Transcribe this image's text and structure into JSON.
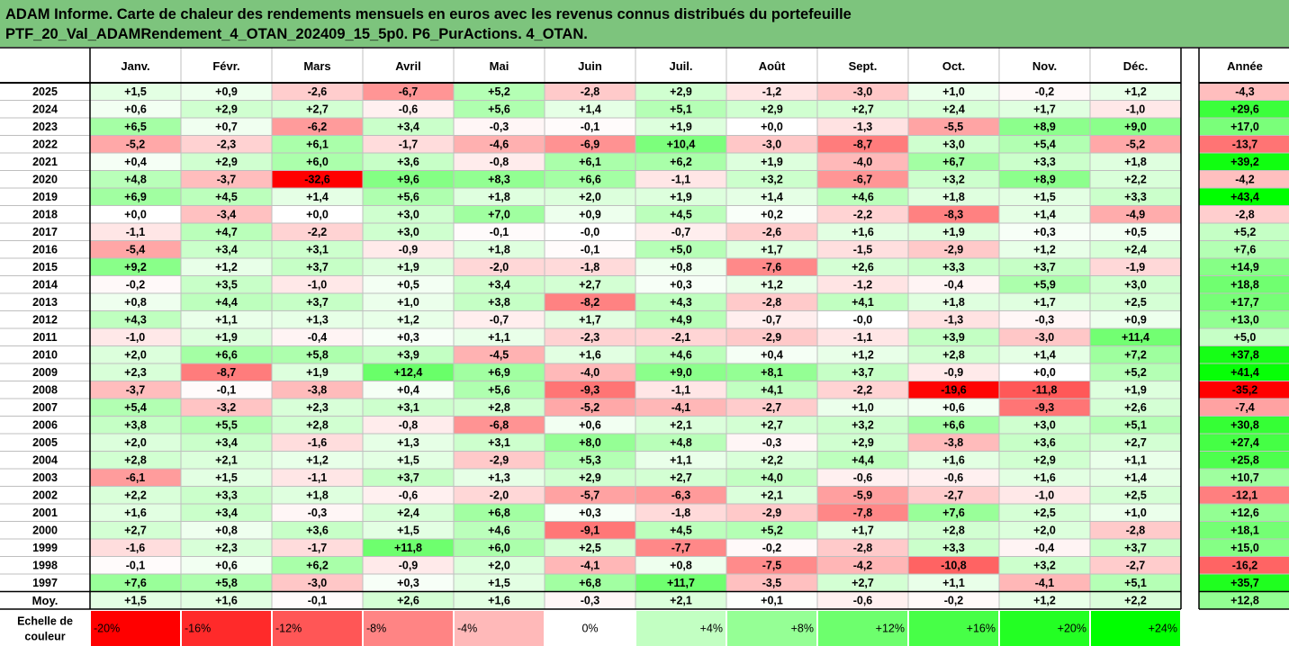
{
  "title": {
    "line1": "ADAM Informe. Carte de chaleur des rendements mensuels en euros avec les revenus connus distribués du portefeuille",
    "line2": "PTF_20_Val_ADAMRendement_4_OTAN_202409_15_5p0. P6_PurActions. 4_OTAN."
  },
  "chart_data": {
    "type": "heatmap",
    "month_headers": [
      "Janv.",
      "Févr.",
      "Mars",
      "Avril",
      "Mai",
      "Juin",
      "Juil.",
      "Août",
      "Sept.",
      "Oct.",
      "Nov.",
      "Déc."
    ],
    "year_header": "Année",
    "rows": [
      {
        "year": "2025",
        "months": [
          1.5,
          0.9,
          -2.6,
          -6.7,
          5.2,
          -2.8,
          2.9,
          -1.2,
          -3.0,
          1.0,
          -0.2,
          1.2
        ],
        "annual": -4.3
      },
      {
        "year": "2024",
        "months": [
          0.6,
          2.9,
          2.7,
          -0.6,
          5.6,
          1.4,
          5.1,
          2.9,
          2.7,
          2.4,
          1.7,
          -1.0
        ],
        "annual": 29.6
      },
      {
        "year": "2023",
        "months": [
          6.5,
          0.7,
          -6.2,
          3.4,
          -0.3,
          -0.1,
          1.9,
          0.0,
          -1.3,
          -5.5,
          8.9,
          9.0
        ],
        "annual": 17.0
      },
      {
        "year": "2022",
        "months": [
          -5.2,
          -2.3,
          6.1,
          -1.7,
          -4.6,
          -6.9,
          10.4,
          -3.0,
          -8.7,
          3.0,
          5.4,
          -5.2
        ],
        "annual": -13.7
      },
      {
        "year": "2021",
        "months": [
          0.4,
          2.9,
          6.0,
          3.6,
          -0.8,
          6.1,
          6.2,
          1.9,
          -4.0,
          6.7,
          3.3,
          1.8
        ],
        "annual": 39.2
      },
      {
        "year": "2020",
        "months": [
          4.8,
          -3.7,
          -32.6,
          9.6,
          8.3,
          6.6,
          -1.1,
          3.2,
          -6.7,
          3.2,
          8.9,
          2.2
        ],
        "annual": -4.2
      },
      {
        "year": "2019",
        "months": [
          6.9,
          4.5,
          1.4,
          5.6,
          1.8,
          2.0,
          1.9,
          1.4,
          4.6,
          1.8,
          1.5,
          3.3
        ],
        "annual": 43.4
      },
      {
        "year": "2018",
        "months": [
          0.0,
          -3.4,
          0.0,
          3.0,
          7.0,
          0.9,
          4.5,
          0.2,
          -2.2,
          -8.3,
          1.4,
          -4.9
        ],
        "annual": -2.8
      },
      {
        "year": "2017",
        "months": [
          -1.1,
          4.7,
          -2.2,
          3.0,
          -0.1,
          -0.0,
          -0.7,
          -2.6,
          1.6,
          1.9,
          0.3,
          0.5
        ],
        "annual": 5.2
      },
      {
        "year": "2016",
        "months": [
          -5.4,
          3.4,
          3.1,
          -0.9,
          1.8,
          -0.1,
          5.0,
          1.7,
          -1.5,
          -2.9,
          1.2,
          2.4
        ],
        "annual": 7.6
      },
      {
        "year": "2015",
        "months": [
          9.2,
          1.2,
          3.7,
          1.9,
          -2.0,
          -1.8,
          0.8,
          -7.6,
          2.6,
          3.3,
          3.7,
          -1.9
        ],
        "annual": 14.9
      },
      {
        "year": "2014",
        "months": [
          -0.2,
          3.5,
          -1.0,
          0.5,
          3.4,
          2.7,
          0.3,
          1.2,
          -1.2,
          -0.4,
          5.9,
          3.0
        ],
        "annual": 18.8
      },
      {
        "year": "2013",
        "months": [
          0.8,
          4.4,
          3.7,
          1.0,
          3.8,
          -8.2,
          4.3,
          -2.8,
          4.1,
          1.8,
          1.7,
          2.5
        ],
        "annual": 17.7
      },
      {
        "year": "2012",
        "months": [
          4.3,
          1.1,
          1.3,
          1.2,
          -0.7,
          1.7,
          4.9,
          -0.7,
          -0.0,
          -1.3,
          -0.3,
          0.9
        ],
        "annual": 13.0
      },
      {
        "year": "2011",
        "months": [
          -1.0,
          1.9,
          -0.4,
          0.3,
          1.1,
          -2.3,
          -2.1,
          -2.9,
          -1.1,
          3.9,
          -3.0,
          11.4
        ],
        "annual": 5.0
      },
      {
        "year": "2010",
        "months": [
          2.0,
          6.6,
          5.8,
          3.9,
          -4.5,
          1.6,
          4.6,
          0.4,
          1.2,
          2.8,
          1.4,
          7.2
        ],
        "annual": 37.8
      },
      {
        "year": "2009",
        "months": [
          2.3,
          -8.7,
          1.9,
          12.4,
          6.9,
          -4.0,
          9.0,
          8.1,
          3.7,
          -0.9,
          0.0,
          5.2
        ],
        "annual": 41.4
      },
      {
        "year": "2008",
        "months": [
          -3.7,
          -0.1,
          -3.8,
          0.4,
          5.6,
          -9.3,
          -1.1,
          4.1,
          -2.2,
          -19.6,
          -11.8,
          1.9
        ],
        "annual": -35.2
      },
      {
        "year": "2007",
        "months": [
          5.4,
          -3.2,
          2.3,
          3.1,
          2.8,
          -5.2,
          -4.1,
          -2.7,
          1.0,
          0.6,
          -9.3,
          2.6
        ],
        "annual": -7.4
      },
      {
        "year": "2006",
        "months": [
          3.8,
          5.5,
          2.8,
          -0.8,
          -6.8,
          0.6,
          2.1,
          2.7,
          3.2,
          6.6,
          3.0,
          5.1
        ],
        "annual": 30.8
      },
      {
        "year": "2005",
        "months": [
          2.0,
          3.4,
          -1.6,
          1.3,
          3.1,
          8.0,
          4.8,
          -0.3,
          2.9,
          -3.8,
          3.6,
          2.7
        ],
        "annual": 27.4
      },
      {
        "year": "2004",
        "months": [
          2.8,
          2.1,
          1.2,
          1.5,
          -2.9,
          5.3,
          1.1,
          2.2,
          4.4,
          1.6,
          2.9,
          1.1
        ],
        "annual": 25.8
      },
      {
        "year": "2003",
        "months": [
          -6.1,
          1.5,
          -1.1,
          3.7,
          1.3,
          2.9,
          2.7,
          4.0,
          -0.6,
          -0.6,
          1.6,
          1.4
        ],
        "annual": 10.7
      },
      {
        "year": "2002",
        "months": [
          2.2,
          3.3,
          1.8,
          -0.6,
          -2.0,
          -5.7,
          -6.3,
          2.1,
          -5.9,
          -2.7,
          -1.0,
          2.5
        ],
        "annual": -12.1
      },
      {
        "year": "2001",
        "months": [
          1.6,
          3.4,
          -0.3,
          2.4,
          6.8,
          0.3,
          -1.8,
          -2.9,
          -7.8,
          7.6,
          2.5,
          1.0
        ],
        "annual": 12.6
      },
      {
        "year": "2000",
        "months": [
          2.7,
          0.8,
          3.6,
          1.5,
          4.6,
          -9.1,
          4.5,
          5.2,
          1.7,
          2.8,
          2.0,
          -2.8
        ],
        "annual": 18.1
      },
      {
        "year": "1999",
        "months": [
          -1.6,
          2.3,
          -1.7,
          11.8,
          6.0,
          2.5,
          -7.7,
          -0.2,
          -2.8,
          3.3,
          -0.4,
          3.7
        ],
        "annual": 15.0
      },
      {
        "year": "1998",
        "months": [
          -0.1,
          0.6,
          6.2,
          -0.9,
          2.0,
          -4.1,
          0.8,
          -7.5,
          -4.2,
          -10.8,
          3.2,
          -2.7
        ],
        "annual": -16.2
      },
      {
        "year": "1997",
        "months": [
          7.6,
          5.8,
          -3.0,
          0.3,
          1.5,
          6.8,
          11.7,
          -3.5,
          2.7,
          1.1,
          -4.1,
          5.1
        ],
        "annual": 35.7
      }
    ],
    "average_row": {
      "label": "Moy.",
      "months": [
        1.5,
        1.6,
        -0.1,
        2.6,
        1.6,
        -0.3,
        2.1,
        0.1,
        -0.6,
        -0.2,
        1.2,
        2.2
      ],
      "annual": 12.8
    },
    "color_scale": {
      "label_line1": "Echelle de",
      "label_line2": "couleur",
      "stops": [
        "-20%",
        "-16%",
        "-12%",
        "-8%",
        "-4%",
        "0%",
        "+4%",
        "+8%",
        "+12%",
        "+16%",
        "+20%",
        "+24%"
      ],
      "stop_values": [
        -20,
        -16,
        -12,
        -8,
        -4,
        0,
        4,
        8,
        12,
        16,
        20,
        24
      ]
    },
    "colors": {
      "negative": "#ff0000",
      "positive": "#00ff00",
      "neutral": "#ffffff",
      "title_bg": "#7dc47d",
      "border": "#000000",
      "gridline": "#bfbfbf"
    }
  }
}
